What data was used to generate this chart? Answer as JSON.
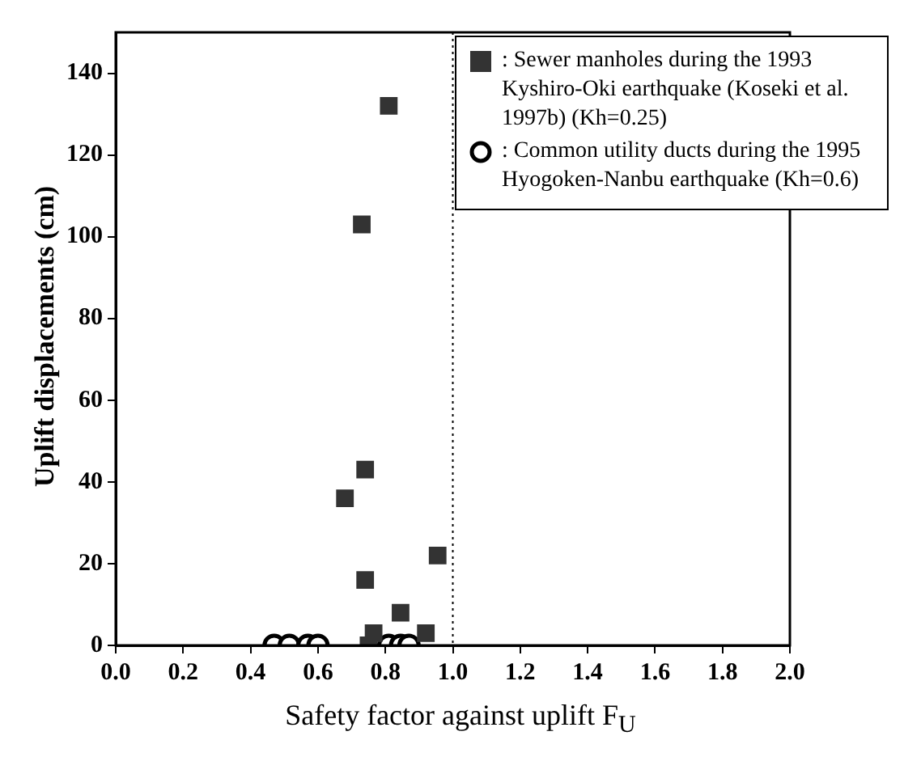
{
  "chart_data": {
    "type": "scatter",
    "xlabel": "Safety factor against uplift F$_{U}$",
    "ylabel": "Uplift displacements (cm)",
    "xlim": [
      0,
      2
    ],
    "xticks": [
      {
        "value": 0,
        "label": "0.0"
      },
      {
        "value": 0.2,
        "label": "0.2"
      },
      {
        "value": 0.4,
        "label": "0.4"
      },
      {
        "value": 0.6,
        "label": "0.6"
      },
      {
        "value": 0.8,
        "label": "0.8"
      },
      {
        "value": 1,
        "label": "1.0"
      },
      {
        "value": 1.2,
        "label": "1.2"
      },
      {
        "value": 1.4,
        "label": "1.4"
      },
      {
        "value": 1.6,
        "label": "1.6"
      },
      {
        "value": 1.8,
        "label": "1.8"
      },
      {
        "value": 2,
        "label": "2.0"
      }
    ],
    "ylim": [
      0,
      150
    ],
    "yticks": [
      0,
      20,
      40,
      60,
      80,
      100,
      120,
      140
    ],
    "grid": false,
    "legend": "top right",
    "ref_lines": [
      {
        "axis": "x",
        "value": 1,
        "line_style": "dotted",
        "color": "#000000"
      }
    ],
    "series": [
      {
        "name": ": Sewer manholes during the 1993 Kyshiro-Oki earthquake (Koseki et al. 1997b) (Kh=0.25)",
        "color": "#333333",
        "marker": "square",
        "x": [
          0.81,
          0.73,
          0.74,
          0.68,
          0.74,
          0.955,
          0.845,
          0.92,
          0.765,
          0.75
        ],
        "values": [
          132,
          103,
          43,
          36,
          16,
          22,
          8,
          3,
          3,
          0
        ]
      },
      {
        "name": ": Common utility ducts during the 1995 Hyogoken-Nanbu earthquake (Kh=0.6)",
        "color": "#000000",
        "marker": "circle",
        "x": [
          0.47,
          0.515,
          0.57,
          0.6,
          0.81,
          0.845,
          0.87
        ],
        "values": [
          0,
          0,
          0,
          0,
          0,
          0,
          0
        ]
      }
    ]
  }
}
